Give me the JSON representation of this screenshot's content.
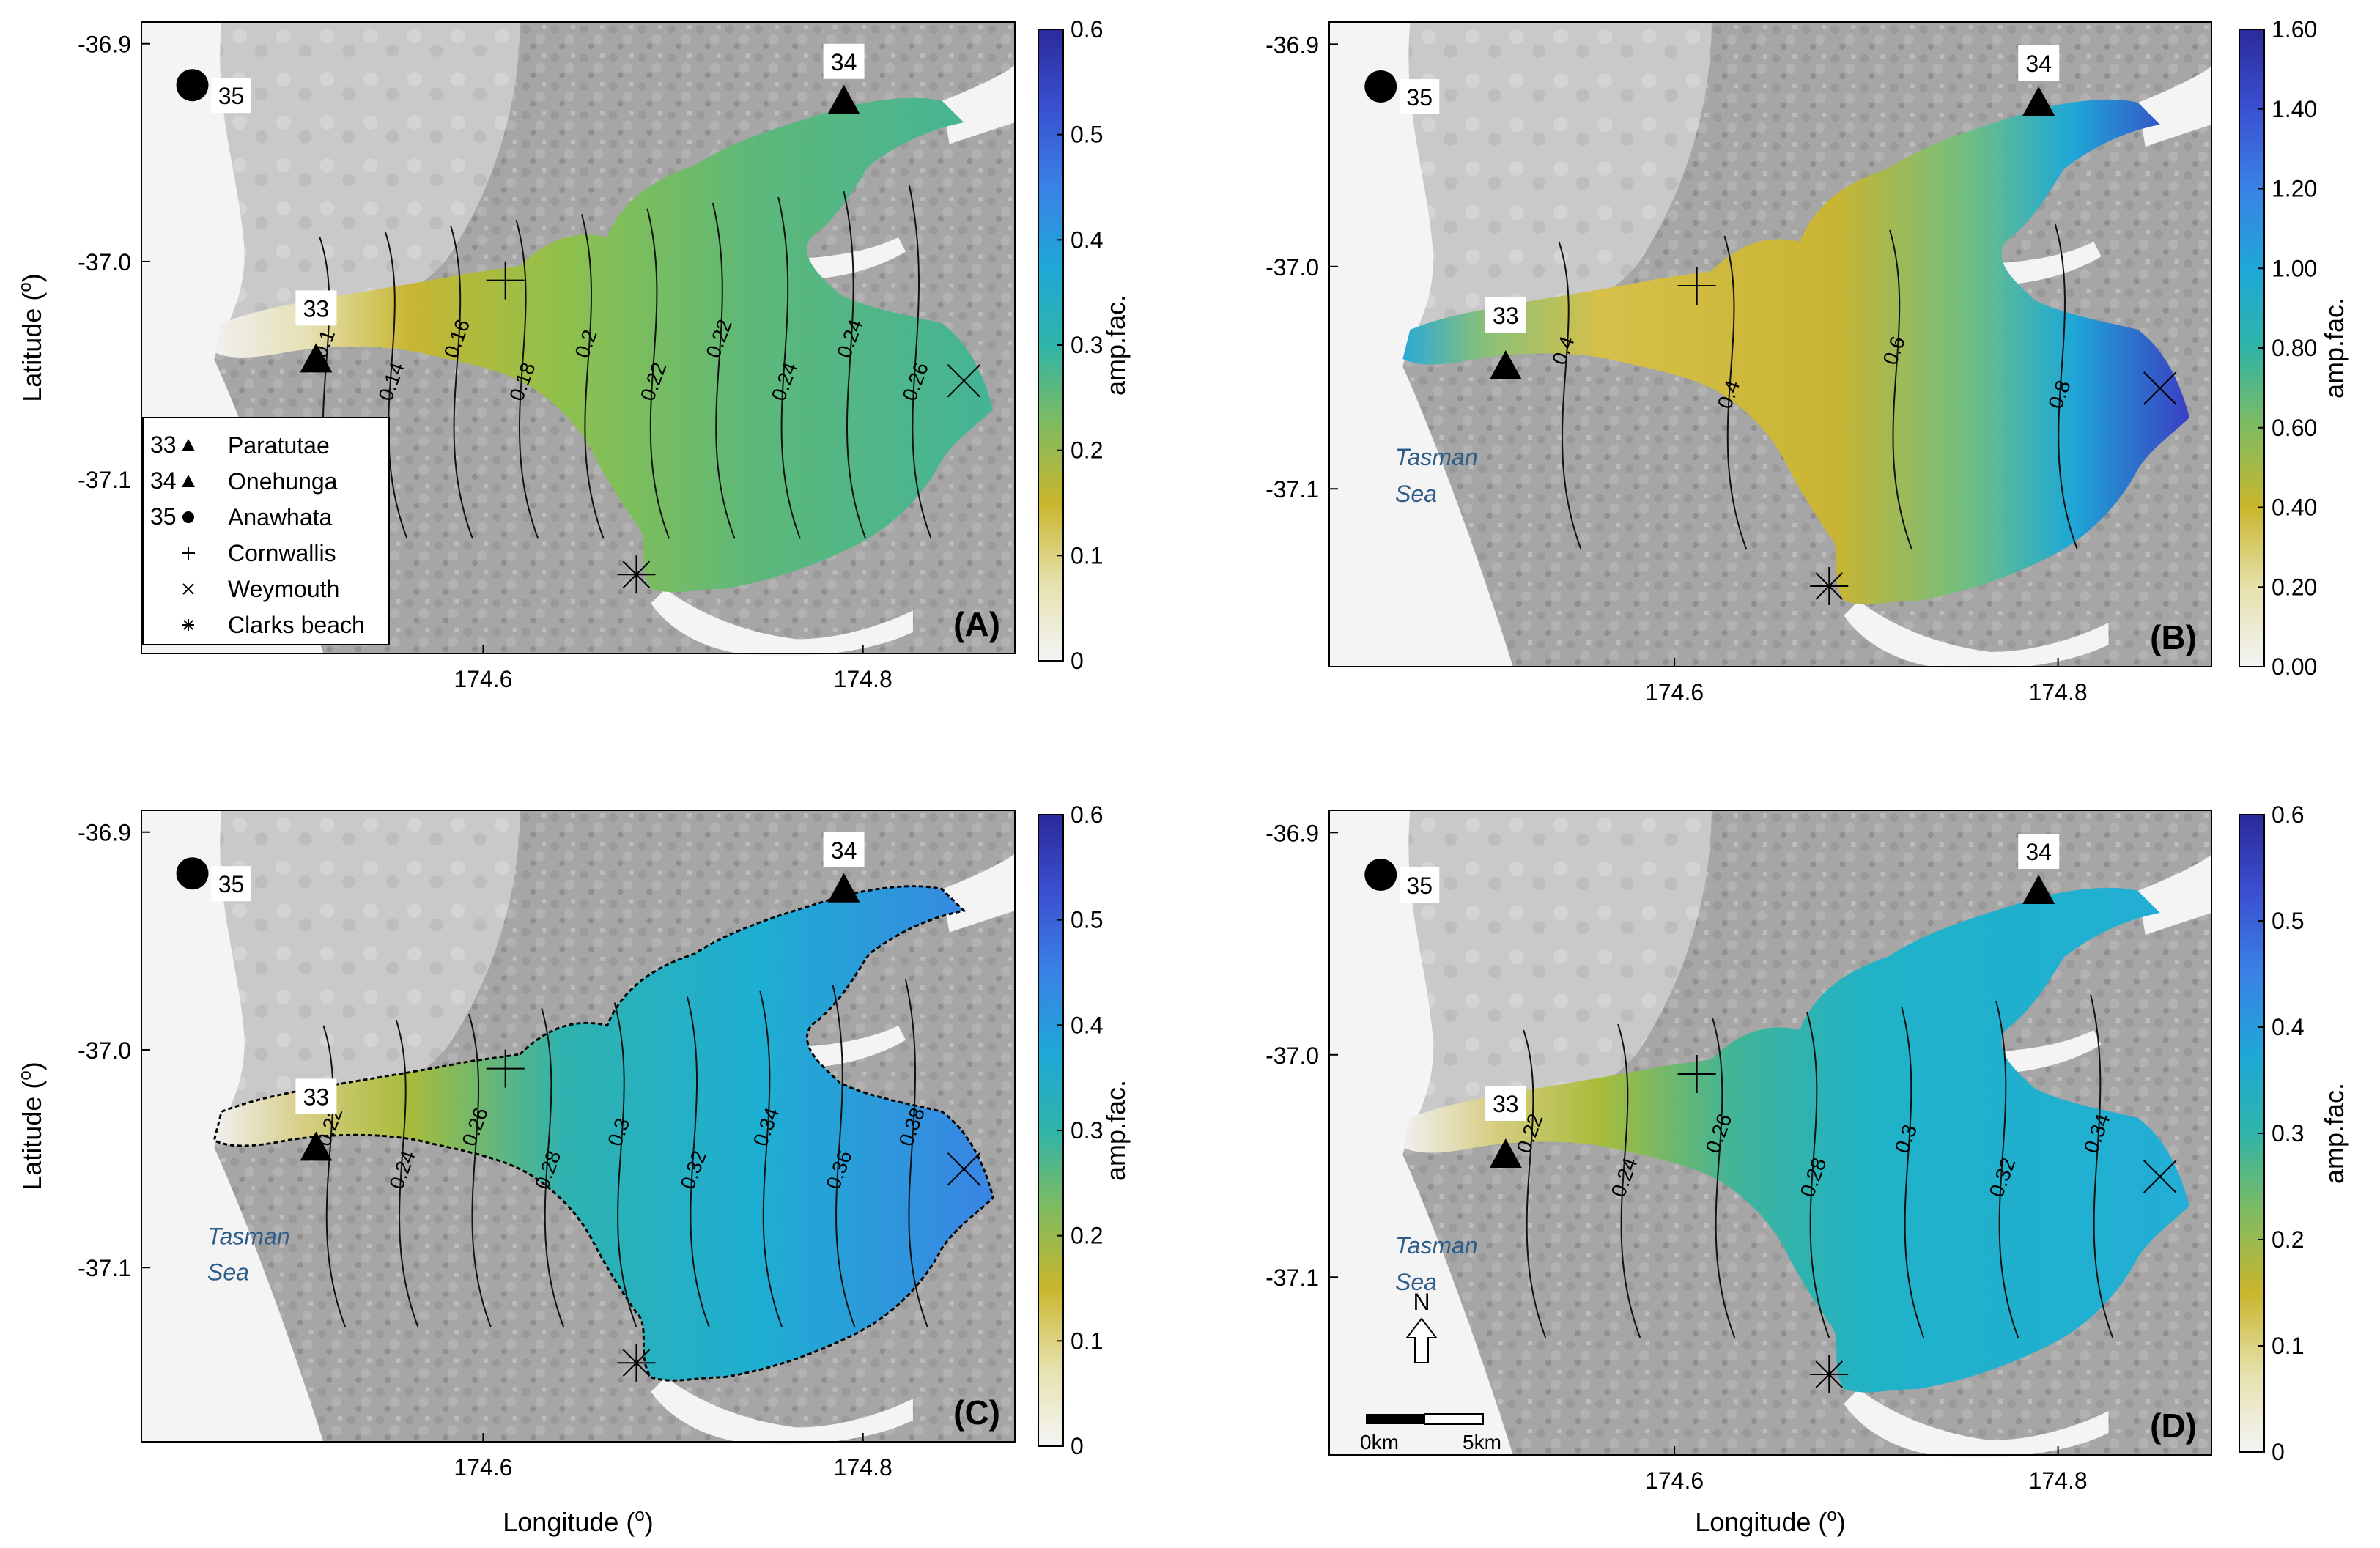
{
  "axes": {
    "latitude_label": "Latitude (",
    "longitude_label": "Longitude (",
    "degree": "o",
    "close_paren": ")",
    "lat_ticks": [
      "-36.9",
      "-37.0",
      "-37.1"
    ],
    "lon_ticks": [
      "174.6",
      "174.8"
    ],
    "colorbar_label": "amp.fac."
  },
  "panels": [
    {
      "label": "(A)",
      "colorbar_ticks": [
        "0",
        "0.1",
        "0.2",
        "0.3",
        "0.4",
        "0.5",
        "0.6"
      ],
      "contours": [
        "0.1",
        "0.14",
        "0.16",
        "0.18",
        "0.2",
        "0.22",
        "0.22",
        "0.24",
        "0.24",
        "0.26"
      ],
      "has_legend": true,
      "has_sea_label": false,
      "has_scale": false
    },
    {
      "label": "(B)",
      "colorbar_ticks": [
        "0.00",
        "0.20",
        "0.40",
        "0.60",
        "0.80",
        "1.00",
        "1.20",
        "1.40",
        "1.60"
      ],
      "contours": [
        "0.4",
        "0.4",
        "0.6",
        "0.8"
      ],
      "has_legend": false,
      "has_sea_label": true,
      "has_scale": false
    },
    {
      "label": "(C)",
      "colorbar_ticks": [
        "0",
        "0.1",
        "0.2",
        "0.3",
        "0.4",
        "0.5",
        "0.6"
      ],
      "contours": [
        "0.22",
        "0.24",
        "0.26",
        "0.28",
        "0.3",
        "0.32",
        "0.34",
        "0.36",
        "0.38"
      ],
      "has_legend": false,
      "has_sea_label": true,
      "has_scale": false
    },
    {
      "label": "(D)",
      "colorbar_ticks": [
        "0",
        "0.1",
        "0.2",
        "0.3",
        "0.4",
        "0.5",
        "0.6"
      ],
      "contours": [
        "0.22",
        "0.24",
        "0.26",
        "0.28",
        "0.3",
        "0.32",
        "0.34"
      ],
      "has_legend": false,
      "has_sea_label": true,
      "has_scale": true
    }
  ],
  "stations": {
    "s33": "33",
    "s34": "34",
    "s35": "35"
  },
  "legend": [
    {
      "key": "33",
      "symbol": "triangle",
      "name": "Paratutae"
    },
    {
      "key": "34",
      "symbol": "triangle",
      "name": "Onehunga"
    },
    {
      "key": "35",
      "symbol": "circle",
      "name": "Anawhata"
    },
    {
      "key": "",
      "symbol": "plus",
      "name": "Cornwallis"
    },
    {
      "key": "",
      "symbol": "cross",
      "name": "Weymouth"
    },
    {
      "key": "",
      "symbol": "asterisk",
      "name": "Clarks beach"
    }
  ],
  "sea_label": [
    "Tasman",
    "Sea"
  ],
  "scale_bar": {
    "north": "N",
    "start": "0km",
    "end": "5km"
  },
  "colors": {
    "land": "#a9a9a9",
    "water_light": "#f2f2f2",
    "harbour_green": "#5cb87a",
    "harbour_yellow": "#c8b42a",
    "harbour_cyan": "#1fb0c8",
    "harbour_blue": "#3a7fe0",
    "colorbar_top": "#2e2a9e",
    "sea_text": "#2f5d8a"
  }
}
